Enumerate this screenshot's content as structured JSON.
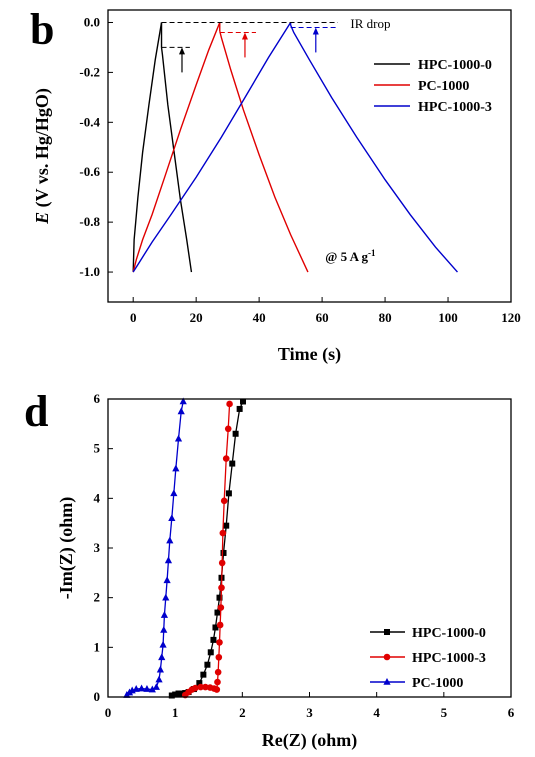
{
  "chart_data": [
    {
      "panel": "b",
      "type": "line",
      "xlabel": "Time (s)",
      "ylabel_italic": "E",
      "ylabel_rest": " (V vs. Hg/HgO)",
      "xlim": [
        -8,
        120
      ],
      "ylim": [
        -1.12,
        0.05
      ],
      "xticks": [
        0,
        20,
        40,
        60,
        80,
        100,
        120
      ],
      "yticks": [
        0.0,
        -0.2,
        -0.4,
        -0.6,
        -0.8,
        -1.0
      ],
      "ytick_labels": [
        "0.0",
        "-0.2",
        "-0.4",
        "-0.6",
        "-0.8",
        "-1.0"
      ],
      "legend_position": "top-right",
      "annotations": {
        "ir_drop": "IR drop",
        "current_prefix": "@ 5 A g",
        "current_sup": "-1"
      },
      "series": [
        {
          "name": "HPC-1000-0",
          "color": "#000000",
          "charge_x": [
            0,
            0.3,
            0.8,
            1.5,
            3,
            5,
            7,
            9
          ],
          "charge_y": [
            -1.0,
            -0.87,
            -0.8,
            -0.7,
            -0.52,
            -0.33,
            -0.15,
            0.0
          ],
          "discharge_x": [
            9,
            9.3,
            11,
            13,
            15,
            17,
            18.5
          ],
          "discharge_y": [
            -0.1,
            -0.13,
            -0.33,
            -0.52,
            -0.71,
            -0.87,
            -1.0
          ]
        },
        {
          "name": "PC-1000",
          "color": "#e00000",
          "charge_x": [
            0,
            1,
            3,
            6,
            10,
            15,
            20,
            24,
            27.5
          ],
          "charge_y": [
            -1.0,
            -0.95,
            -0.87,
            -0.77,
            -0.62,
            -0.43,
            -0.25,
            -0.11,
            0.0
          ],
          "discharge_x": [
            27.5,
            28,
            31,
            35,
            40,
            45,
            50,
            55.5
          ],
          "discharge_y": [
            -0.035,
            -0.06,
            -0.19,
            -0.35,
            -0.53,
            -0.7,
            -0.85,
            -1.0
          ]
        },
        {
          "name": "HPC-1000-3",
          "color": "#0000cc",
          "charge_x": [
            0,
            2,
            6,
            12,
            20,
            28,
            36,
            43,
            50
          ],
          "charge_y": [
            -1.0,
            -0.96,
            -0.88,
            -0.77,
            -0.62,
            -0.46,
            -0.29,
            -0.14,
            0.0
          ],
          "discharge_x": [
            50,
            51,
            56,
            63,
            71,
            80,
            88,
            96,
            103
          ],
          "discharge_y": [
            -0.01,
            -0.04,
            -0.15,
            -0.3,
            -0.46,
            -0.63,
            -0.77,
            -0.9,
            -1.0
          ]
        }
      ]
    },
    {
      "panel": "d",
      "type": "scatter",
      "xlabel": "Re(Z) (ohm)",
      "ylabel": "-Im(Z) (ohm)",
      "xlim": [
        0,
        6
      ],
      "ylim": [
        0,
        6
      ],
      "xticks": [
        0,
        1,
        2,
        3,
        4,
        5,
        6
      ],
      "yticks": [
        0,
        1,
        2,
        3,
        4,
        5,
        6
      ],
      "legend_position": "bottom-right",
      "series": [
        {
          "name": "HPC-1000-0",
          "color": "#000000",
          "marker": "square",
          "x": [
            0.95,
            1.0,
            1.05,
            1.1,
            1.15,
            1.2,
            1.28,
            1.36,
            1.42,
            1.48,
            1.53,
            1.57,
            1.6,
            1.63,
            1.66,
            1.69,
            1.72,
            1.76,
            1.8,
            1.85,
            1.9,
            1.96,
            2.01
          ],
          "y": [
            0.03,
            0.05,
            0.07,
            0.07,
            0.08,
            0.1,
            0.16,
            0.28,
            0.45,
            0.65,
            0.9,
            1.15,
            1.4,
            1.7,
            2.0,
            2.4,
            2.9,
            3.45,
            4.1,
            4.7,
            5.3,
            5.8,
            5.95
          ]
        },
        {
          "name": "HPC-1000-3",
          "color": "#e00000",
          "marker": "circle",
          "x": [
            1.15,
            1.2,
            1.25,
            1.3,
            1.38,
            1.45,
            1.52,
            1.58,
            1.62,
            1.63,
            1.64,
            1.65,
            1.66,
            1.67,
            1.68,
            1.69,
            1.7,
            1.71,
            1.73,
            1.76,
            1.79,
            1.81
          ],
          "y": [
            0.04,
            0.1,
            0.15,
            0.18,
            0.2,
            0.2,
            0.19,
            0.17,
            0.15,
            0.3,
            0.5,
            0.8,
            1.1,
            1.45,
            1.8,
            2.2,
            2.7,
            3.3,
            3.95,
            4.8,
            5.4,
            5.9
          ]
        },
        {
          "name": "PC-1000",
          "color": "#0000cc",
          "marker": "triangle",
          "x": [
            0.28,
            0.32,
            0.36,
            0.42,
            0.5,
            0.58,
            0.66,
            0.72,
            0.76,
            0.78,
            0.8,
            0.82,
            0.83,
            0.84,
            0.86,
            0.88,
            0.9,
            0.92,
            0.95,
            0.98,
            1.01,
            1.05,
            1.09,
            1.12
          ],
          "y": [
            0.04,
            0.09,
            0.13,
            0.16,
            0.17,
            0.16,
            0.15,
            0.2,
            0.35,
            0.55,
            0.8,
            1.05,
            1.35,
            1.65,
            2.0,
            2.35,
            2.75,
            3.15,
            3.6,
            4.1,
            4.6,
            5.2,
            5.75,
            5.95
          ]
        }
      ]
    }
  ]
}
